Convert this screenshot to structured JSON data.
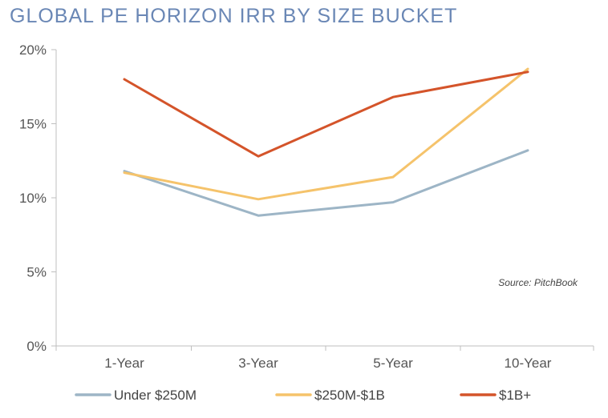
{
  "chart_data": {
    "type": "line",
    "title": "GLOBAL PE HORIZON IRR BY SIZE BUCKET",
    "categories": [
      "1-Year",
      "3-Year",
      "5-Year",
      "10-Year"
    ],
    "y_ticks": [
      "0%",
      "5%",
      "10%",
      "15%",
      "20%"
    ],
    "ylim": [
      0,
      20
    ],
    "y_unit": "%",
    "grid": false,
    "legend_position": "bottom",
    "source": "Source: PitchBook",
    "series": [
      {
        "name": "Under $250M",
        "color": "#9db5c6",
        "values": [
          11.8,
          8.8,
          9.7,
          13.2
        ]
      },
      {
        "name": "$250M-$1B",
        "color": "#f5c36b",
        "values": [
          11.7,
          9.9,
          11.4,
          18.7
        ]
      },
      {
        "name": "$1B+",
        "color": "#d4542a",
        "values": [
          18.0,
          12.8,
          16.8,
          18.5
        ]
      }
    ]
  }
}
